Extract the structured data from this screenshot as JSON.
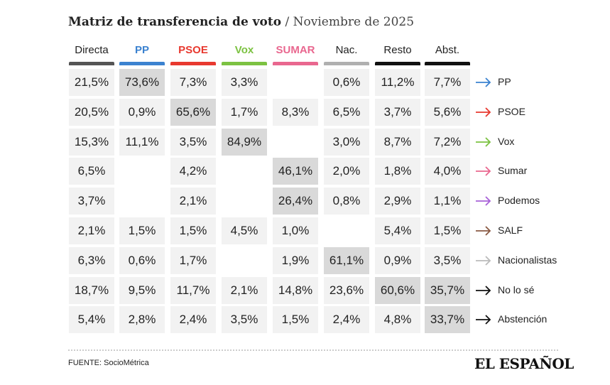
{
  "header": {
    "title": "Matriz de transferencia de voto",
    "subtitle": "/ Noviembre de 2025"
  },
  "table": {
    "columns": [
      {
        "label": "Directa",
        "text_color": "#222222",
        "bar_color": "#555555"
      },
      {
        "label": "PP",
        "text_color": "#3b82d0",
        "bar_color": "#3b82d0"
      },
      {
        "label": "PSOE",
        "text_color": "#e8392f",
        "bar_color": "#e8392f"
      },
      {
        "label": "Vox",
        "text_color": "#7cc242",
        "bar_color": "#7cc242"
      },
      {
        "label": "SUMAR",
        "text_color": "#e9678f",
        "bar_color": "#e9678f"
      },
      {
        "label": "Nac.",
        "text_color": "#222222",
        "bar_color": "#b0b0b0"
      },
      {
        "label": "Resto",
        "text_color": "#222222",
        "bar_color": "#111111"
      },
      {
        "label": "Abst.",
        "text_color": "#222222",
        "bar_color": "#111111"
      }
    ],
    "rows": [
      {
        "label": "PP",
        "color": "#3b82d0",
        "values": [
          "21,5%",
          "73,6%",
          "7,3%",
          "3,3%",
          null,
          "0,6%",
          "11,2%",
          "7,7%"
        ],
        "highlight": [
          1
        ]
      },
      {
        "label": "PSOE",
        "color": "#e8392f",
        "values": [
          "20,5%",
          "0,9%",
          "65,6%",
          "1,7%",
          "8,3%",
          "6,5%",
          "3,7%",
          "5,6%"
        ],
        "highlight": [
          2
        ]
      },
      {
        "label": "Vox",
        "color": "#7cc242",
        "values": [
          "15,3%",
          "11,1%",
          "3,5%",
          "84,9%",
          null,
          "3,0%",
          "8,7%",
          "7,2%"
        ],
        "highlight": [
          3
        ]
      },
      {
        "label": "Sumar",
        "color": "#e9678f",
        "values": [
          "6,5%",
          null,
          "4,2%",
          null,
          "46,1%",
          "2,0%",
          "1,8%",
          "4,0%"
        ],
        "highlight": [
          4
        ]
      },
      {
        "label": "Podemos",
        "color": "#a862d8",
        "values": [
          "3,7%",
          null,
          "2,1%",
          null,
          "26,4%",
          "0,8%",
          "2,9%",
          "1,1%"
        ],
        "highlight": [
          4
        ]
      },
      {
        "label": "SALF",
        "color": "#8a5a44",
        "values": [
          "2,1%",
          "1,5%",
          "1,5%",
          "4,5%",
          "1,0%",
          null,
          "5,4%",
          "1,5%"
        ],
        "highlight": []
      },
      {
        "label": "Nacionalistas",
        "color": "#bbbbbb",
        "values": [
          "6,3%",
          "0,6%",
          "1,7%",
          null,
          "1,9%",
          "61,1%",
          "0,9%",
          "3,5%"
        ],
        "highlight": [
          5
        ]
      },
      {
        "label": "No lo sé",
        "color": "#111111",
        "values": [
          "18,7%",
          "9,5%",
          "11,7%",
          "2,1%",
          "14,8%",
          "23,6%",
          "60,6%",
          "35,7%"
        ],
        "highlight": [
          6,
          7
        ]
      },
      {
        "label": "Abstención",
        "color": "#111111",
        "values": [
          "5,4%",
          "2,8%",
          "2,4%",
          "3,5%",
          "1,5%",
          "2,4%",
          "4,8%",
          "33,7%"
        ],
        "highlight": [
          7
        ]
      }
    ]
  },
  "footer": {
    "source": "FUENTE: SocioMétrica",
    "logo": "EL ESPAÑOL"
  }
}
